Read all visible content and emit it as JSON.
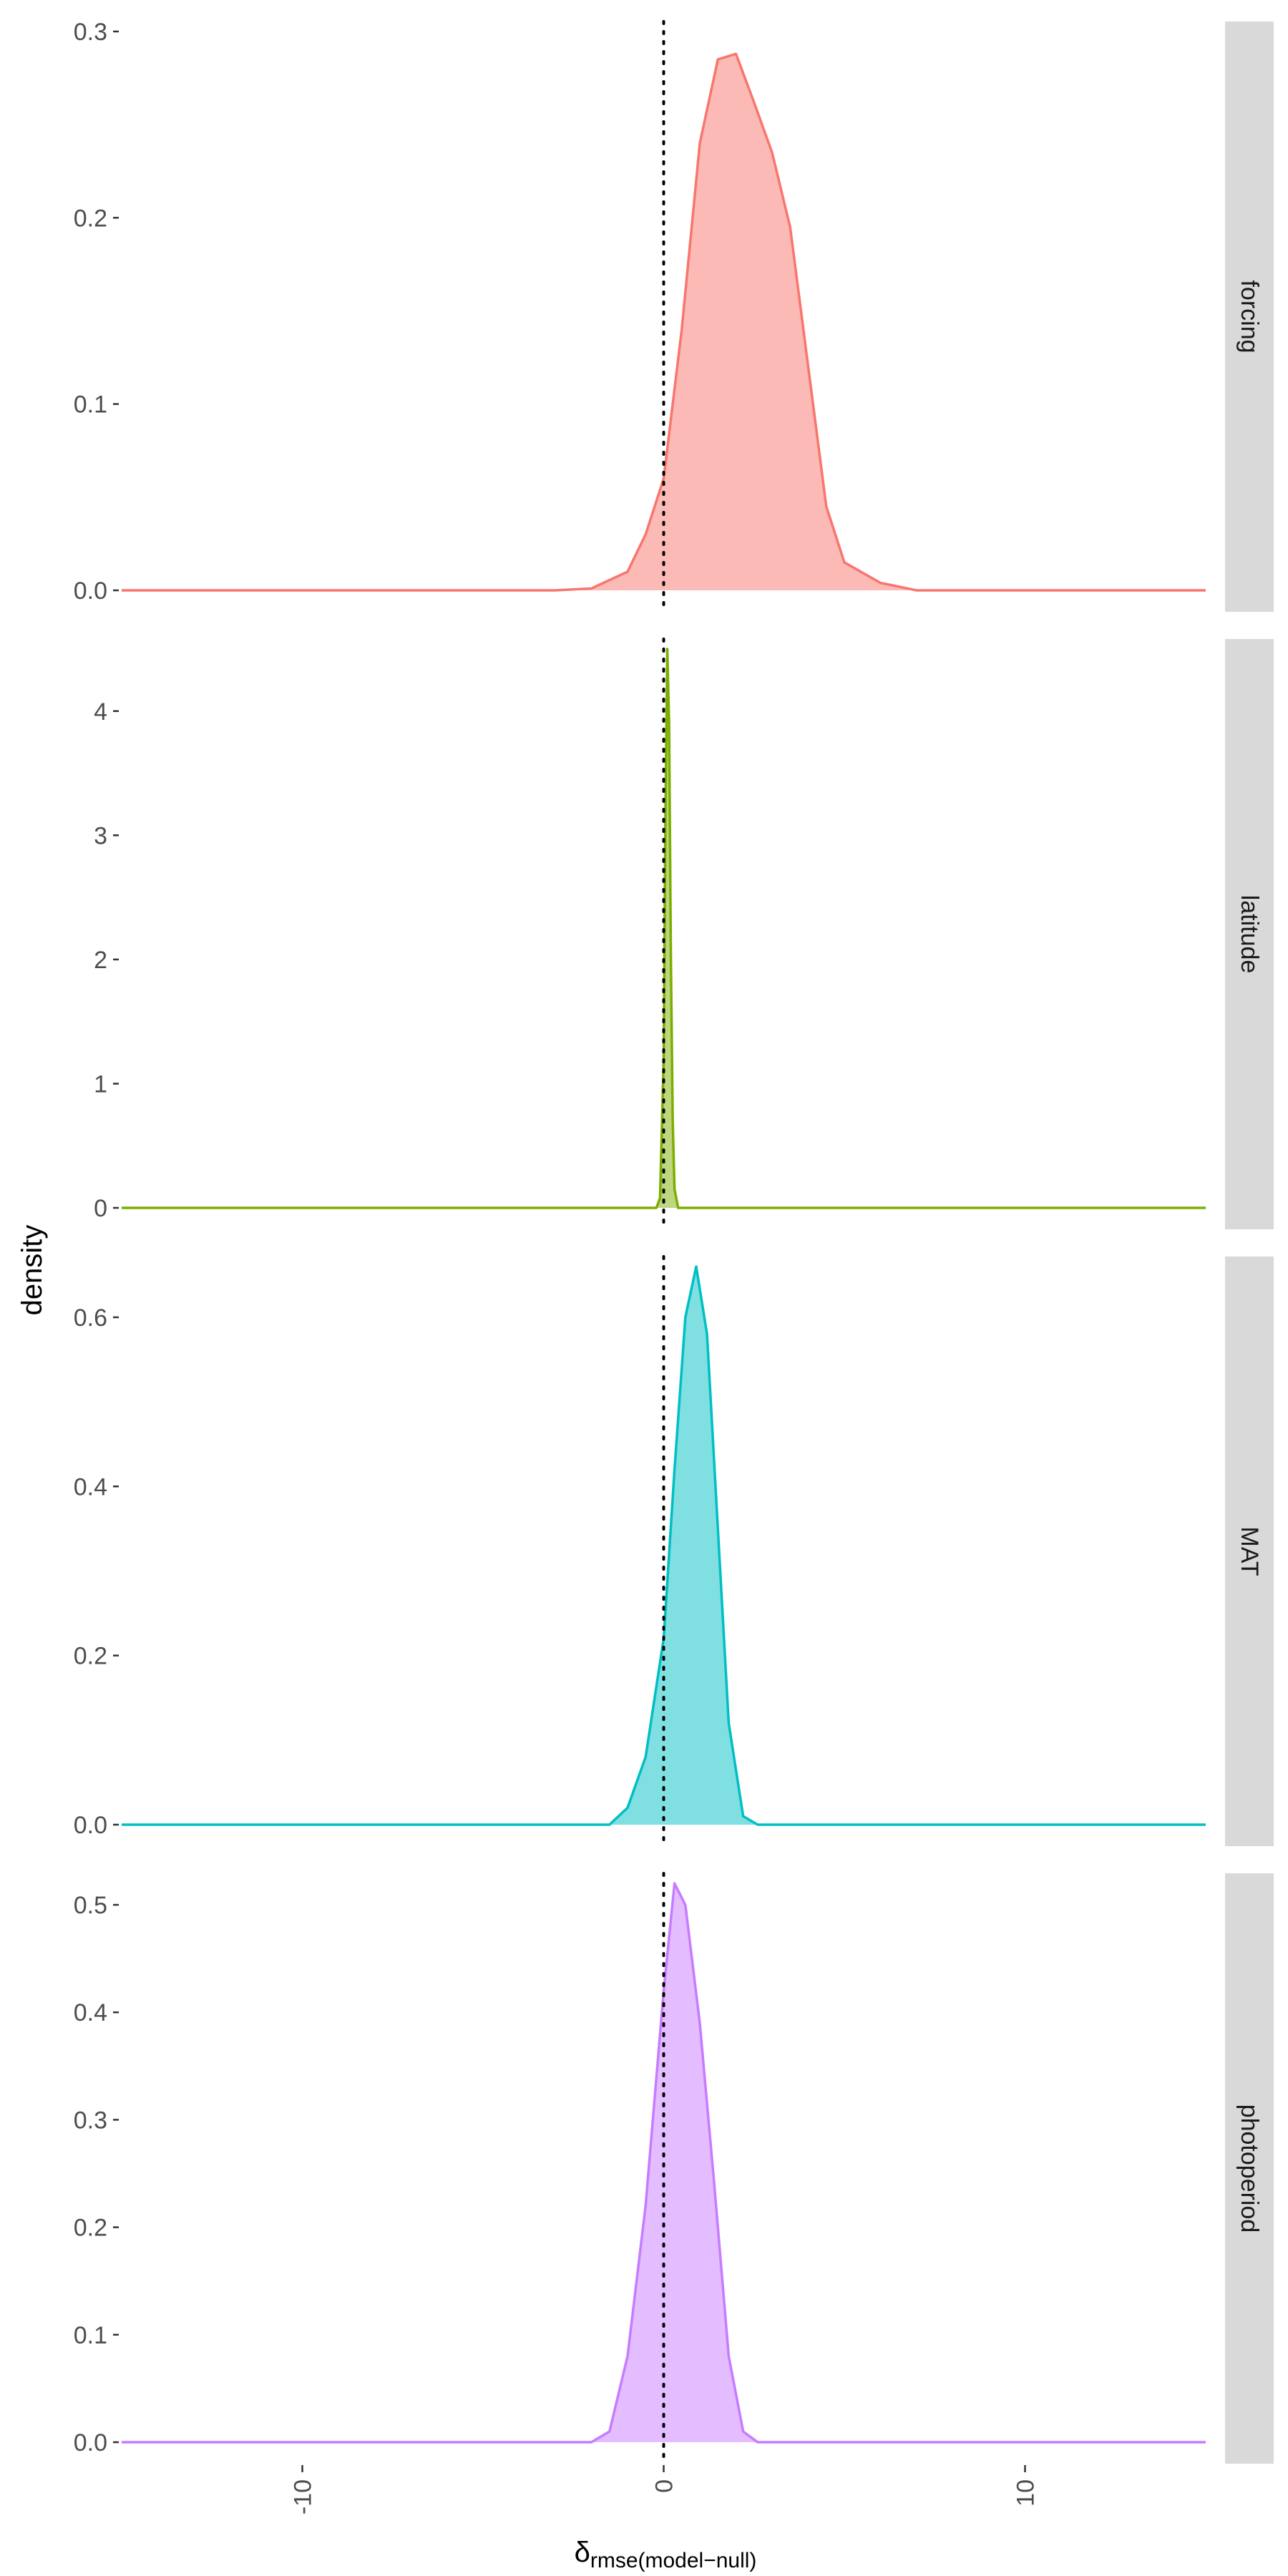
{
  "chart_data": {
    "type": "area",
    "subtype": "faceted density plot",
    "xlabel": "δ",
    "xlabel_subscript": "rmse(model−null)",
    "ylabel": "density",
    "xlim": [
      -15,
      15
    ],
    "x_ticks": [
      -10,
      0,
      10
    ],
    "x_tick_labels": [
      "-10",
      "0",
      "10"
    ],
    "reference_line": {
      "x": 0,
      "style": "dotted",
      "color": "#000000"
    },
    "grid": false,
    "legend": "none",
    "facets": [
      {
        "label": "forcing",
        "color": "#F8766D",
        "ylim": [
          0,
          0.3
        ],
        "y_ticks": [
          0.0,
          0.1,
          0.2,
          0.3
        ],
        "y_tick_labels": [
          "0.0",
          "0.1",
          "0.2",
          "0.3"
        ],
        "x": [
          -15,
          -3,
          -2,
          -1,
          -0.5,
          0,
          0.5,
          1,
          1.5,
          2,
          2.5,
          3,
          3.5,
          4,
          4.5,
          5,
          6,
          7,
          15
        ],
        "y": [
          0,
          0,
          0.001,
          0.01,
          0.03,
          0.06,
          0.14,
          0.24,
          0.285,
          0.288,
          0.262,
          0.235,
          0.195,
          0.12,
          0.045,
          0.015,
          0.004,
          0.0,
          0
        ]
      },
      {
        "label": "latitude",
        "color": "#7CAE00",
        "ylim": [
          0,
          4.5
        ],
        "y_ticks": [
          0,
          1,
          2,
          3,
          4
        ],
        "y_tick_labels": [
          "0",
          "1",
          "2",
          "3",
          "4"
        ],
        "x": [
          -15,
          -0.2,
          -0.1,
          0.0,
          0.05,
          0.1,
          0.15,
          0.2,
          0.25,
          0.3,
          0.4,
          15
        ],
        "y": [
          0,
          0,
          0.08,
          1.2,
          3.2,
          4.5,
          3.9,
          2.0,
          0.7,
          0.15,
          0,
          0
        ]
      },
      {
        "label": "MAT",
        "color": "#00BFC4",
        "ylim": [
          0,
          0.66
        ],
        "y_ticks": [
          0.0,
          0.2,
          0.4,
          0.6
        ],
        "y_tick_labels": [
          "0.0",
          "0.2",
          "0.4",
          "0.6"
        ],
        "x": [
          -15,
          -1.5,
          -1.0,
          -0.5,
          0,
          0.3,
          0.6,
          0.9,
          1.2,
          1.5,
          1.8,
          2.2,
          2.6,
          15
        ],
        "y": [
          0,
          0,
          0.02,
          0.08,
          0.22,
          0.42,
          0.6,
          0.66,
          0.58,
          0.35,
          0.12,
          0.01,
          0,
          0
        ]
      },
      {
        "label": "photoperiod",
        "color": "#C77CFF",
        "ylim": [
          0,
          0.52
        ],
        "y_ticks": [
          0.0,
          0.1,
          0.2,
          0.3,
          0.4,
          0.5
        ],
        "y_tick_labels": [
          "0.0",
          "0.1",
          "0.2",
          "0.3",
          "0.4",
          "0.5"
        ],
        "x": [
          -15,
          -2.0,
          -1.5,
          -1.0,
          -0.5,
          0,
          0.3,
          0.6,
          1.0,
          1.4,
          1.8,
          2.2,
          2.6,
          15
        ],
        "y": [
          0,
          0,
          0.01,
          0.08,
          0.22,
          0.42,
          0.52,
          0.5,
          0.39,
          0.24,
          0.08,
          0.01,
          0,
          0
        ]
      }
    ]
  }
}
